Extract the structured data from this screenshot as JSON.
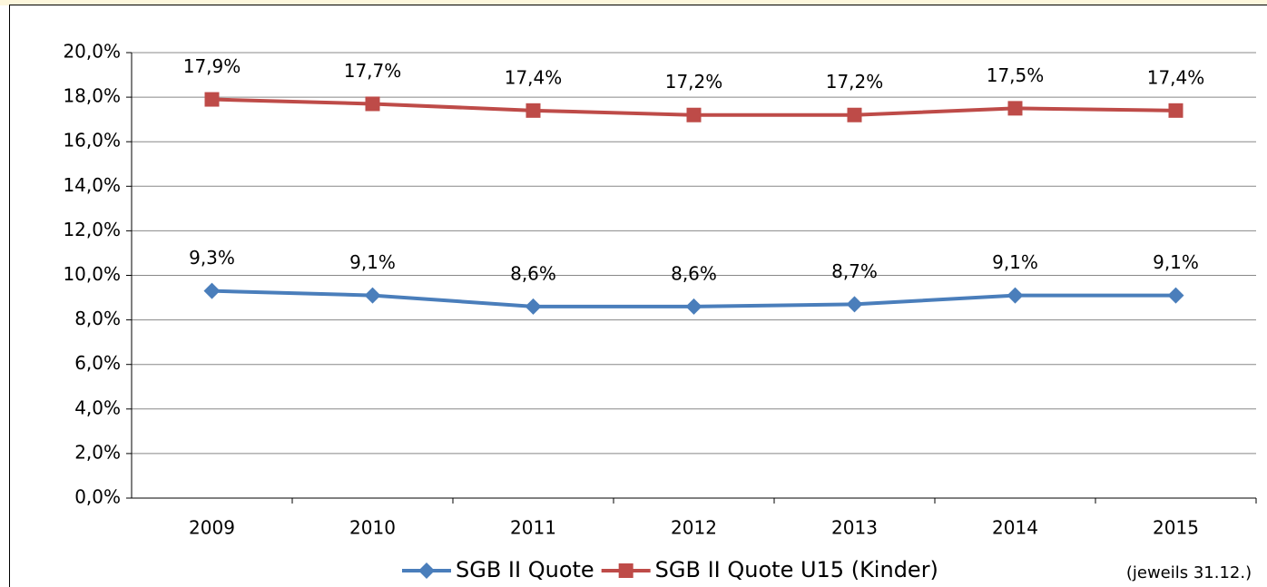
{
  "chart_data": {
    "type": "line",
    "categories": [
      "2009",
      "2010",
      "2011",
      "2012",
      "2013",
      "2014",
      "2015"
    ],
    "series": [
      {
        "name": "SGB II Quote",
        "color": "#4a7ebb",
        "marker": "diamond",
        "values": [
          9.3,
          9.1,
          8.6,
          8.6,
          8.7,
          9.1,
          9.1
        ],
        "value_labels": [
          "9,3%",
          "9,1%",
          "8,6%",
          "8,6%",
          "8,7%",
          "9,1%",
          "9,1%"
        ]
      },
      {
        "name": "SGB II Quote U15 (Kinder)",
        "color": "#be4b48",
        "marker": "square",
        "values": [
          17.9,
          17.7,
          17.4,
          17.2,
          17.2,
          17.5,
          17.4
        ],
        "value_labels": [
          "17,9%",
          "17,7%",
          "17,4%",
          "17,2%",
          "17,2%",
          "17,5%",
          "17,4%"
        ]
      }
    ],
    "ylim": [
      0,
      20
    ],
    "yticks": [
      {
        "value": 0,
        "label": "0,0%"
      },
      {
        "value": 2,
        "label": "2,0%"
      },
      {
        "value": 4,
        "label": "4,0%"
      },
      {
        "value": 6,
        "label": "6,0%"
      },
      {
        "value": 8,
        "label": "8,0%"
      },
      {
        "value": 10,
        "label": "10,0%"
      },
      {
        "value": 12,
        "label": "12,0%"
      },
      {
        "value": 14,
        "label": "14,0%"
      },
      {
        "value": 16,
        "label": "16,0%"
      },
      {
        "value": 18,
        "label": "18,0%"
      },
      {
        "value": 20,
        "label": "20,0%"
      }
    ],
    "grid": true,
    "legend": "bottom",
    "annotation": "(jeweils 31.12.)"
  }
}
